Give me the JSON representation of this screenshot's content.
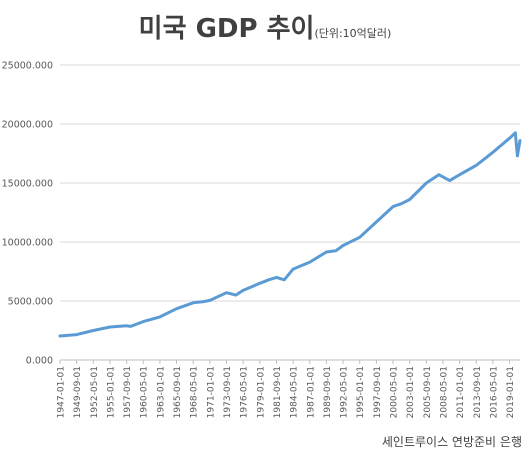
{
  "chart_data": {
    "type": "line",
    "title": "미국 GDP 추이",
    "subtitle": "(단위:10억달러)",
    "source": "세인트루이스 연방준비 은행",
    "xlabel": "",
    "ylabel": "",
    "ylim": [
      0,
      25000
    ],
    "y_ticks": [
      "0.000",
      "5000.000",
      "10000.000",
      "15000.000",
      "20000.000",
      "25000.000"
    ],
    "x_ticks": [
      "1947-01-01",
      "1949-09-01",
      "1952-05-01",
      "1955-01-01",
      "1957-09-01",
      "1960-05-01",
      "1963-01-01",
      "1965-09-01",
      "1968-05-01",
      "1971-01-01",
      "1973-09-01",
      "1976-05-01",
      "1979-01-01",
      "1981-09-01",
      "1984-05-01",
      "1987-01-01",
      "1989-09-01",
      "1992-05-01",
      "1995-01-01",
      "1997-09-01",
      "2000-05-01",
      "2003-01-01",
      "2005-09-01",
      "2008-05-01",
      "2011-01-01",
      "2013-09-01",
      "2016-05-01",
      "2019-01-01"
    ],
    "grid": "horizontal",
    "legend": "none",
    "color": "#5b9bd5",
    "series": [
      {
        "x": [
          "1947-01-01",
          "1949-09-01",
          "1952-05-01",
          "1955-01-01",
          "1957-09-01",
          "1958-05-01",
          "1960-05-01",
          "1963-01-01",
          "1965-09-01",
          "1968-05-01",
          "1970-01-01",
          "1971-01-01",
          "1973-09-01",
          "1975-03-01",
          "1976-05-01",
          "1979-01-01",
          "1980-06-01",
          "1981-09-01",
          "1982-12-01",
          "1984-05-01",
          "1987-01-01",
          "1989-09-01",
          "1991-03-01",
          "1992-05-01",
          "1995-01-01",
          "1997-09-01",
          "2000-05-01",
          "2001-09-01",
          "2003-01-01",
          "2005-09-01",
          "2007-09-01",
          "2009-06-01",
          "2011-01-01",
          "2013-09-01",
          "2016-05-01",
          "2019-01-01",
          "2019-12-01",
          "2020-04-01",
          "2020-09-01"
        ],
        "y": [
          2030,
          2150,
          2500,
          2800,
          2900,
          2850,
          3250,
          3650,
          4350,
          4850,
          4950,
          5050,
          5700,
          5500,
          5900,
          6500,
          6800,
          7000,
          6800,
          7700,
          8300,
          9150,
          9250,
          9700,
          10400,
          11700,
          13000,
          13250,
          13600,
          15000,
          15700,
          15200,
          15700,
          16500,
          17600,
          18800,
          19250,
          17300,
          18600
        ]
      }
    ]
  }
}
